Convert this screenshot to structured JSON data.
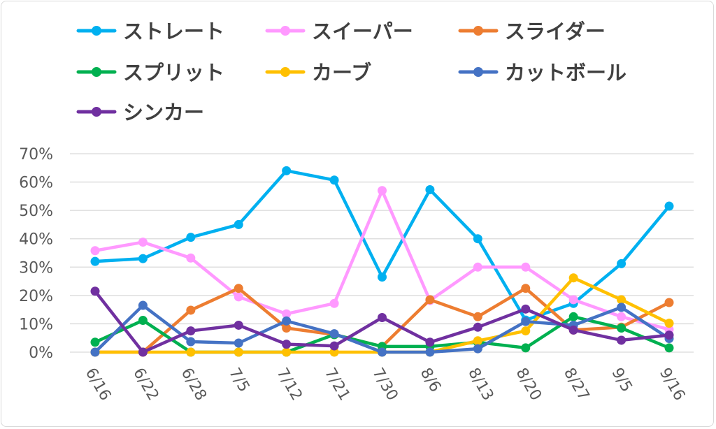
{
  "chart_data": {
    "type": "line",
    "title": "",
    "xlabel": "",
    "ylabel": "",
    "categories": [
      "6/16",
      "6/22",
      "6/28",
      "7/5",
      "7/12",
      "7/21",
      "7/30",
      "8/6",
      "8/13",
      "8/20",
      "8/27",
      "9/5",
      "9/16"
    ],
    "ylim": [
      0,
      0.7
    ],
    "yticks": [
      {
        "value": 0,
        "label": "0%"
      },
      {
        "value": 0.1,
        "label": "10%"
      },
      {
        "value": 0.2,
        "label": "20%"
      },
      {
        "value": 0.3,
        "label": "30%"
      },
      {
        "value": 0.4,
        "label": "40%"
      },
      {
        "value": 0.5,
        "label": "50%"
      },
      {
        "value": 0.6,
        "label": "60%"
      },
      {
        "value": 0.7,
        "label": "70%"
      }
    ],
    "grid": true,
    "legend": "top",
    "series": [
      {
        "name": "ストレート",
        "color": "#00b0f0",
        "values": [
          0.32,
          0.33,
          0.405,
          0.45,
          0.64,
          0.607,
          0.265,
          0.573,
          0.4,
          0.113,
          0.172,
          0.312,
          0.515
        ]
      },
      {
        "name": "スイーパー",
        "color": "#ff99ff",
        "values": [
          0.358,
          0.388,
          0.332,
          0.195,
          0.135,
          0.172,
          0.57,
          0.182,
          0.3,
          0.3,
          0.185,
          0.125,
          0.08
        ]
      },
      {
        "name": "スライダー",
        "color": "#ed7d31",
        "values": [
          0,
          0,
          0.148,
          0.225,
          0.085,
          0.062,
          0.02,
          0.185,
          0.125,
          0.225,
          0.078,
          0.088,
          0.175
        ]
      },
      {
        "name": "スプリット",
        "color": "#00b050",
        "values": [
          0.035,
          0.112,
          0,
          0,
          0,
          0.062,
          0.02,
          0.02,
          0.035,
          0.015,
          0.125,
          0.085,
          0.015
        ]
      },
      {
        "name": "カーブ",
        "color": "#ffc000",
        "values": [
          0,
          0,
          0,
          0,
          0,
          0,
          0,
          0,
          0.04,
          0.075,
          0.262,
          0.185,
          0.102
        ]
      },
      {
        "name": "カットボール",
        "color": "#4472c4",
        "values": [
          0,
          0.165,
          0.037,
          0.032,
          0.11,
          0.065,
          0,
          0,
          0.012,
          0.108,
          0.095,
          0.158,
          0.048
        ]
      },
      {
        "name": "シンカー",
        "color": "#7030a0",
        "values": [
          0.215,
          0,
          0.075,
          0.095,
          0.028,
          0.022,
          0.122,
          0.035,
          0.088,
          0.152,
          0.078,
          0.042,
          0.06
        ]
      }
    ]
  }
}
